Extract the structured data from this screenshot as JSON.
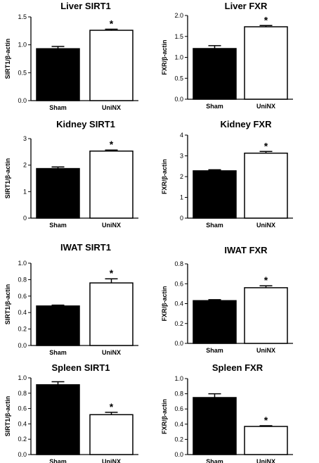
{
  "figure": {
    "panels": [
      {
        "title": "Liver SIRT1"
      },
      {
        "title": "Liver FXR"
      },
      {
        "title": "Kidney SIRT1"
      },
      {
        "title": "Kidney FXR"
      },
      {
        "title": "IWAT SIRT1"
      },
      {
        "title": "IWAT FXR"
      },
      {
        "title": "Spleen SIRT1"
      },
      {
        "title": "Spleen FXR"
      }
    ]
  },
  "chart_data": [
    {
      "type": "bar",
      "title": "Liver SIRT1",
      "ylabel": "SIRT1/β-actin",
      "categories": [
        "Sham",
        "UniNX"
      ],
      "values": [
        0.93,
        1.26
      ],
      "errors": [
        0.04,
        0.02
      ],
      "significance": [
        "",
        "*"
      ],
      "ylim": [
        0,
        1.5
      ],
      "yticks": [
        0.0,
        0.5,
        1.0,
        1.5
      ],
      "ytick_labels": [
        "0.0",
        "0.5",
        "1.0",
        "1.5"
      ],
      "bar_fills": [
        "#000000",
        "#ffffff"
      ]
    },
    {
      "type": "bar",
      "title": "Liver FXR",
      "ylabel": "FXR/β-actin",
      "categories": [
        "Sham",
        "UniNX"
      ],
      "values": [
        1.21,
        1.73
      ],
      "errors": [
        0.07,
        0.03
      ],
      "significance": [
        "",
        "*"
      ],
      "ylim": [
        0,
        2.0
      ],
      "yticks": [
        0.0,
        0.5,
        1.0,
        1.5,
        2.0
      ],
      "ytick_labels": [
        "0.0",
        "0.5",
        "1.0",
        "1.5",
        "2.0"
      ],
      "bar_fills": [
        "#000000",
        "#ffffff"
      ]
    },
    {
      "type": "bar",
      "title": "Kidney SIRT1",
      "ylabel": "SIRT1/β-actin",
      "categories": [
        "Sham",
        "UniNX"
      ],
      "values": [
        1.87,
        2.53
      ],
      "errors": [
        0.06,
        0.04
      ],
      "significance": [
        "",
        "*"
      ],
      "ylim": [
        0,
        3
      ],
      "yticks": [
        0,
        1,
        2,
        3
      ],
      "ytick_labels": [
        "0",
        "1",
        "2",
        "3"
      ],
      "bar_fills": [
        "#000000",
        "#ffffff"
      ]
    },
    {
      "type": "bar",
      "title": "Kidney FXR",
      "ylabel": "FXR/β-actin",
      "categories": [
        "Sham",
        "UniNX"
      ],
      "values": [
        2.28,
        3.13
      ],
      "errors": [
        0.05,
        0.08
      ],
      "significance": [
        "",
        "*"
      ],
      "ylim": [
        0,
        4
      ],
      "yticks": [
        0,
        1,
        2,
        3,
        4
      ],
      "ytick_labels": [
        "0",
        "1",
        "2",
        "3",
        "4"
      ],
      "bar_fills": [
        "#000000",
        "#ffffff"
      ]
    },
    {
      "type": "bar",
      "title": "IWAT SIRT1",
      "ylabel": "SIRT1/β-actin",
      "categories": [
        "Sham",
        "UniNX"
      ],
      "values": [
        0.48,
        0.76
      ],
      "errors": [
        0.01,
        0.05
      ],
      "significance": [
        "",
        "*"
      ],
      "ylim": [
        0,
        1.0
      ],
      "yticks": [
        0.0,
        0.2,
        0.4,
        0.6,
        0.8,
        1.0
      ],
      "ytick_labels": [
        "0.0",
        "0.2",
        "0.4",
        "0.6",
        "0.8",
        "1.0"
      ],
      "bar_fills": [
        "#000000",
        "#ffffff"
      ]
    },
    {
      "type": "bar",
      "title": "IWAT FXR",
      "ylabel": "FXR/β-actin",
      "categories": [
        "Sham",
        "UniNX"
      ],
      "values": [
        0.43,
        0.56
      ],
      "errors": [
        0.01,
        0.02
      ],
      "significance": [
        "",
        "*"
      ],
      "ylim": [
        0,
        0.8
      ],
      "yticks": [
        0.0,
        0.2,
        0.4,
        0.6,
        0.8
      ],
      "ytick_labels": [
        "0.0",
        "0.2",
        "0.4",
        "0.6",
        "0.8"
      ],
      "bar_fills": [
        "#000000",
        "#ffffff"
      ]
    },
    {
      "type": "bar",
      "title": "Spleen SIRT1",
      "ylabel": "SIRT1/β-actin",
      "categories": [
        "Sham",
        "UniNX"
      ],
      "values": [
        0.91,
        0.52
      ],
      "errors": [
        0.04,
        0.03
      ],
      "significance": [
        "",
        "*"
      ],
      "ylim": [
        0,
        1.0
      ],
      "yticks": [
        0.0,
        0.2,
        0.4,
        0.6,
        0.8,
        1.0
      ],
      "ytick_labels": [
        "0.0",
        "0.2",
        "0.4",
        "0.6",
        "0.8",
        "1.0"
      ],
      "bar_fills": [
        "#000000",
        "#ffffff"
      ]
    },
    {
      "type": "bar",
      "title": "Spleen FXR",
      "ylabel": "FXR/β-actin",
      "categories": [
        "Sham",
        "UniNX"
      ],
      "values": [
        0.75,
        0.37
      ],
      "errors": [
        0.05,
        0.01
      ],
      "significance": [
        "",
        "*"
      ],
      "ylim": [
        0,
        1.0
      ],
      "yticks": [
        0.0,
        0.2,
        0.4,
        0.6,
        0.8,
        1.0
      ],
      "ytick_labels": [
        "0.0",
        "0.2",
        "0.4",
        "0.6",
        "0.8",
        "1.0"
      ],
      "bar_fills": [
        "#000000",
        "#ffffff"
      ]
    }
  ]
}
